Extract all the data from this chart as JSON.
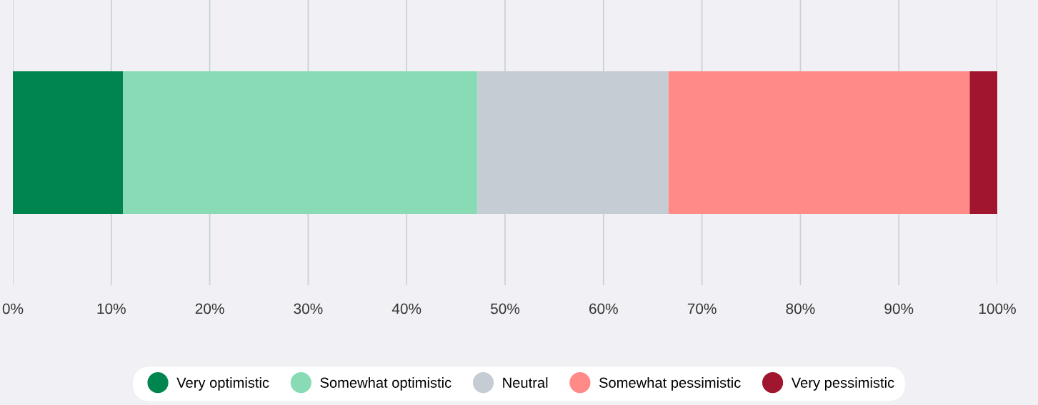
{
  "chart_data": {
    "type": "bar",
    "orientation": "horizontal",
    "stacked": true,
    "categories": [
      null
    ],
    "series": [
      {
        "name": "Very optimistic",
        "color": "#00854f",
        "values": [
          11.2
        ]
      },
      {
        "name": "Somewhat optimistic",
        "color": "#88dbb5",
        "values": [
          36.0
        ]
      },
      {
        "name": "Neutral",
        "color": "#c5ccd4",
        "values": [
          19.4
        ]
      },
      {
        "name": "Somewhat pessimistic",
        "color": "#ff8a87",
        "values": [
          30.6
        ]
      },
      {
        "name": "Very pessimistic",
        "color": "#a0162e",
        "values": [
          2.8
        ]
      }
    ],
    "xlim": [
      0,
      100
    ],
    "xticks": [
      {
        "value": 0,
        "label": "0%"
      },
      {
        "value": 10,
        "label": "10%"
      },
      {
        "value": 20,
        "label": "20%"
      },
      {
        "value": 30,
        "label": "30%"
      },
      {
        "value": 40,
        "label": "40%"
      },
      {
        "value": 50,
        "label": "50%"
      },
      {
        "value": 60,
        "label": "60%"
      },
      {
        "value": 70,
        "label": "70%"
      },
      {
        "value": 80,
        "label": "80%"
      },
      {
        "value": 90,
        "label": "90%"
      },
      {
        "value": 100,
        "label": "100%"
      }
    ],
    "grid": "x",
    "legend": "bottom"
  }
}
